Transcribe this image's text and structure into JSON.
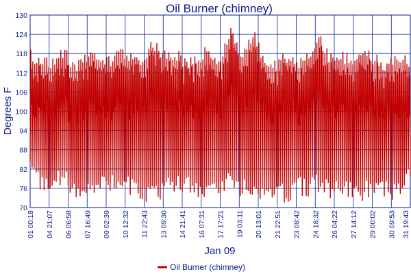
{
  "chart_data": {
    "type": "line",
    "title": "Oil Burner (chimney)",
    "xlabel": "Jan 09",
    "ylabel": "Degrees F",
    "ylim": [
      70,
      130
    ],
    "yticks": [
      70,
      76,
      82,
      88,
      94,
      100,
      106,
      112,
      118,
      124,
      130
    ],
    "x_tick_labels": [
      "01 00:18",
      "04 21:07",
      "06 06:58",
      "07 16:49",
      "09 02:39",
      "10 12:32",
      "11 22:43",
      "13 09:30",
      "14 21:41",
      "16 07:31",
      "17 17:21",
      "19 03:11",
      "20 13:01",
      "21 22:51",
      "23 08:42",
      "24 18:32",
      "26 04:22",
      "27 14:12",
      "29 00:02",
      "30 09:53",
      "31 19:43"
    ],
    "grid": true,
    "legend": "bottom-center",
    "series": [
      {
        "name": "Oil Burner (chimney)",
        "color": "#c00000",
        "min_approx": 71,
        "max_approx": 126,
        "peaks_approx": [
          119,
          118,
          117,
          120,
          116,
          118,
          119,
          117,
          121,
          118,
          117,
          123,
          119,
          120,
          116,
          118,
          121,
          117,
          126,
          119,
          126,
          118,
          116,
          119,
          117,
          120,
          124,
          118,
          119,
          117,
          120,
          118,
          116,
          118,
          117
        ],
        "troughs_approx": [
          80,
          74,
          75,
          76,
          73,
          72,
          74,
          75,
          73,
          74,
          72,
          71,
          73,
          74,
          75,
          72,
          73,
          74,
          75,
          73,
          74,
          72,
          73,
          71,
          74,
          73,
          75,
          72,
          74,
          73,
          72,
          74,
          73,
          71,
          80
        ]
      }
    ]
  }
}
